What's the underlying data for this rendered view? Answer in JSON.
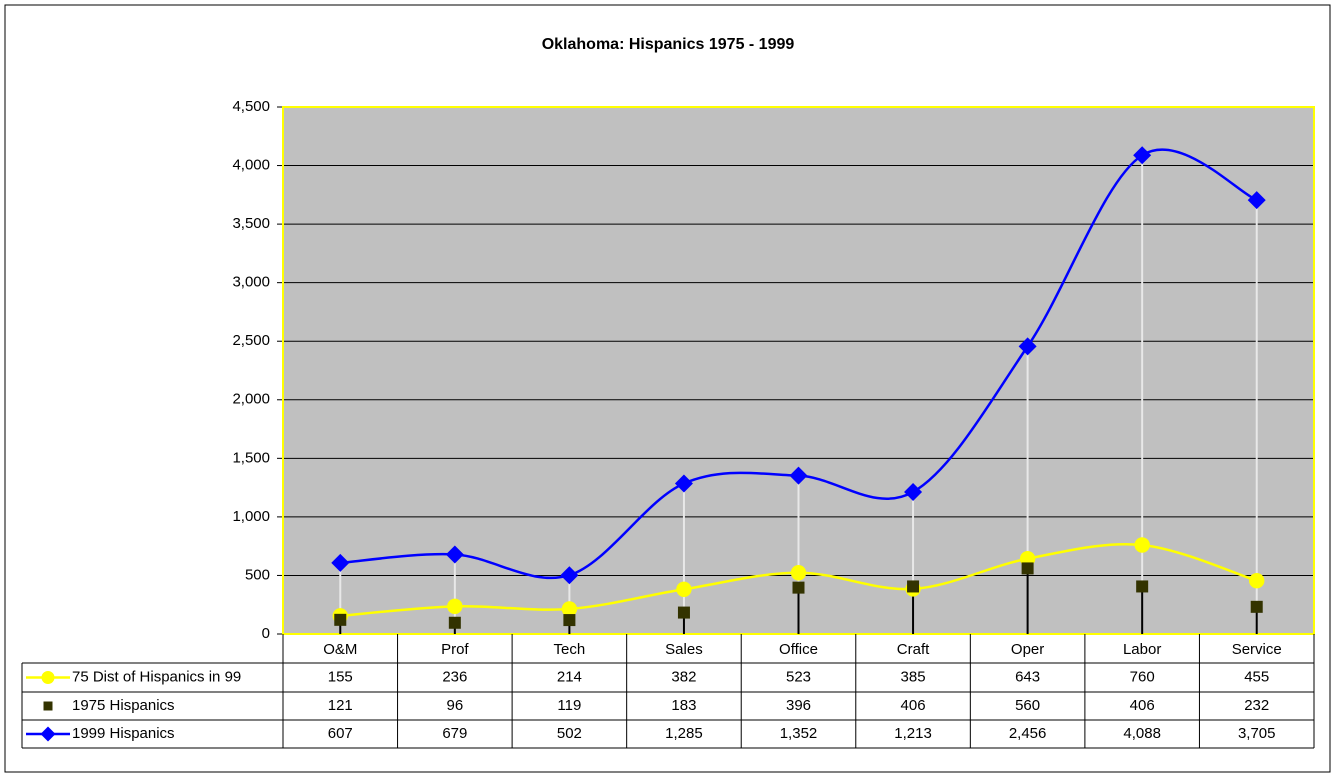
{
  "chart_data": {
    "type": "line",
    "title": "Oklahoma: Hispanics 1975 - 1999",
    "categories": [
      "O&M",
      "Prof",
      "Tech",
      "Sales",
      "Office",
      "Craft",
      "Oper",
      "Labor",
      "Service"
    ],
    "series": [
      {
        "name": "75 Dist of Hispanics in 99",
        "color": "#ffff00",
        "marker": "circle",
        "smooth": true,
        "values": [
          155,
          236,
          214,
          382,
          523,
          385,
          643,
          760,
          455
        ]
      },
      {
        "name": "1975 Hispanics",
        "color": "#333300",
        "marker": "square",
        "smooth": false,
        "line": false,
        "values": [
          121,
          96,
          119,
          183,
          396,
          406,
          560,
          406,
          232
        ]
      },
      {
        "name": "1999 Hispanics",
        "color": "#0000ff",
        "marker": "diamond",
        "smooth": true,
        "values": [
          607,
          679,
          502,
          1285,
          1352,
          1213,
          2456,
          4088,
          3705
        ],
        "value_labels": [
          "607",
          "679",
          "502",
          "1,285",
          "1,352",
          "1,213",
          "2,456",
          "4,088",
          "3,705"
        ]
      }
    ],
    "ylim": [
      0,
      4500
    ],
    "yticks": [
      0,
      500,
      {
        "value": 1000,
        "label": "1,000"
      },
      {
        "value": 1500,
        "label": "1,500"
      },
      {
        "value": 2000,
        "label": "2,000"
      },
      {
        "value": 2500,
        "label": "2,500"
      },
      {
        "value": 3000,
        "label": "3,000"
      },
      {
        "value": 3500,
        "label": "3,500"
      },
      {
        "value": 4000,
        "label": "4,000"
      },
      {
        "value": 4500,
        "label": "4,500"
      }
    ],
    "grid": true,
    "data_table": true
  }
}
